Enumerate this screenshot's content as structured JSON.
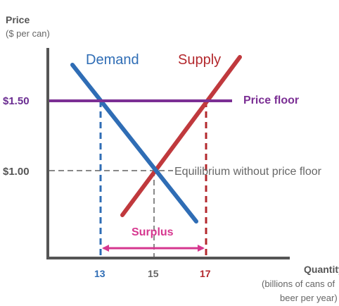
{
  "axes": {
    "y_title": "Price",
    "y_subtitle": "($ per can)",
    "x_title": "Quantity",
    "x_subtitle_1": "(billions of cans of",
    "x_subtitle_2": "beer per year)"
  },
  "price_ticks": [
    {
      "label": "$1.50",
      "color": "#6a2c91"
    },
    {
      "label": "$1.00",
      "color": "#555555"
    }
  ],
  "quantity_ticks": [
    {
      "label": "13",
      "color": "#2f6db5"
    },
    {
      "label": "15",
      "color": "#666666"
    },
    {
      "label": "17",
      "color": "#b3282d"
    }
  ],
  "curves": {
    "demand": {
      "label": "Demand",
      "color": "#2f6db5"
    },
    "supply": {
      "label": "Supply",
      "color": "#b3282d"
    }
  },
  "price_floor": {
    "label": "Price floor",
    "color": "#7b2f94"
  },
  "equilibrium": {
    "label": "Equilibrium without price floor"
  },
  "surplus": {
    "label": "Surplus",
    "color": "#d6378f"
  },
  "colors": {
    "axis": "#555555",
    "guide": "#888888"
  }
}
